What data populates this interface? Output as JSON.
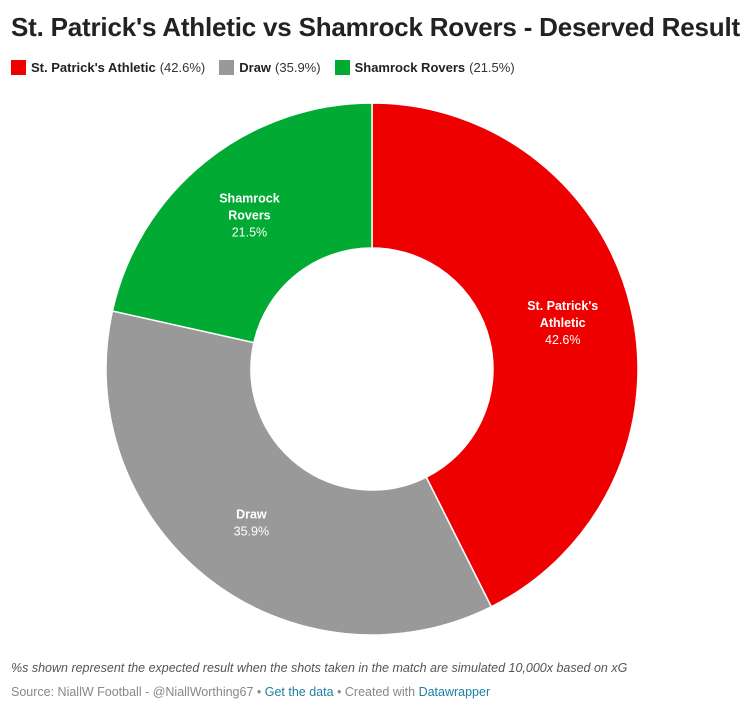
{
  "chart_data": {
    "type": "pie",
    "donut": true,
    "title": "St. Patrick's Athletic vs Shamrock Rovers - Deserved Result",
    "legend_position": "top-left",
    "slices": [
      {
        "name": "St. Patrick's Athletic",
        "label_lines": [
          "St. Patrick's",
          "Athletic"
        ],
        "value": 42.6,
        "value_label": "42.6%",
        "legend_pct": "(42.6%)",
        "color": "#ee0000"
      },
      {
        "name": "Draw",
        "label_lines": [
          "Draw"
        ],
        "value": 35.9,
        "value_label": "35.9%",
        "legend_pct": "(35.9%)",
        "color": "#999999"
      },
      {
        "name": "Shamrock Rovers",
        "label_lines": [
          "Shamrock",
          "Rovers"
        ],
        "value": 21.5,
        "value_label": "21.5%",
        "legend_pct": "(21.5%)",
        "color": "#00aa33"
      }
    ]
  },
  "notes": "%s shown represent the expected result when the shots taken in the match are simulated 10,000x based on xG",
  "footer": {
    "source": "Source: NiallW Football - @NiallWorthing67",
    "separator": " • ",
    "get_data_label": "Get the data",
    "created_with": "Created with",
    "datawrapper_label": "Datawrapper"
  }
}
